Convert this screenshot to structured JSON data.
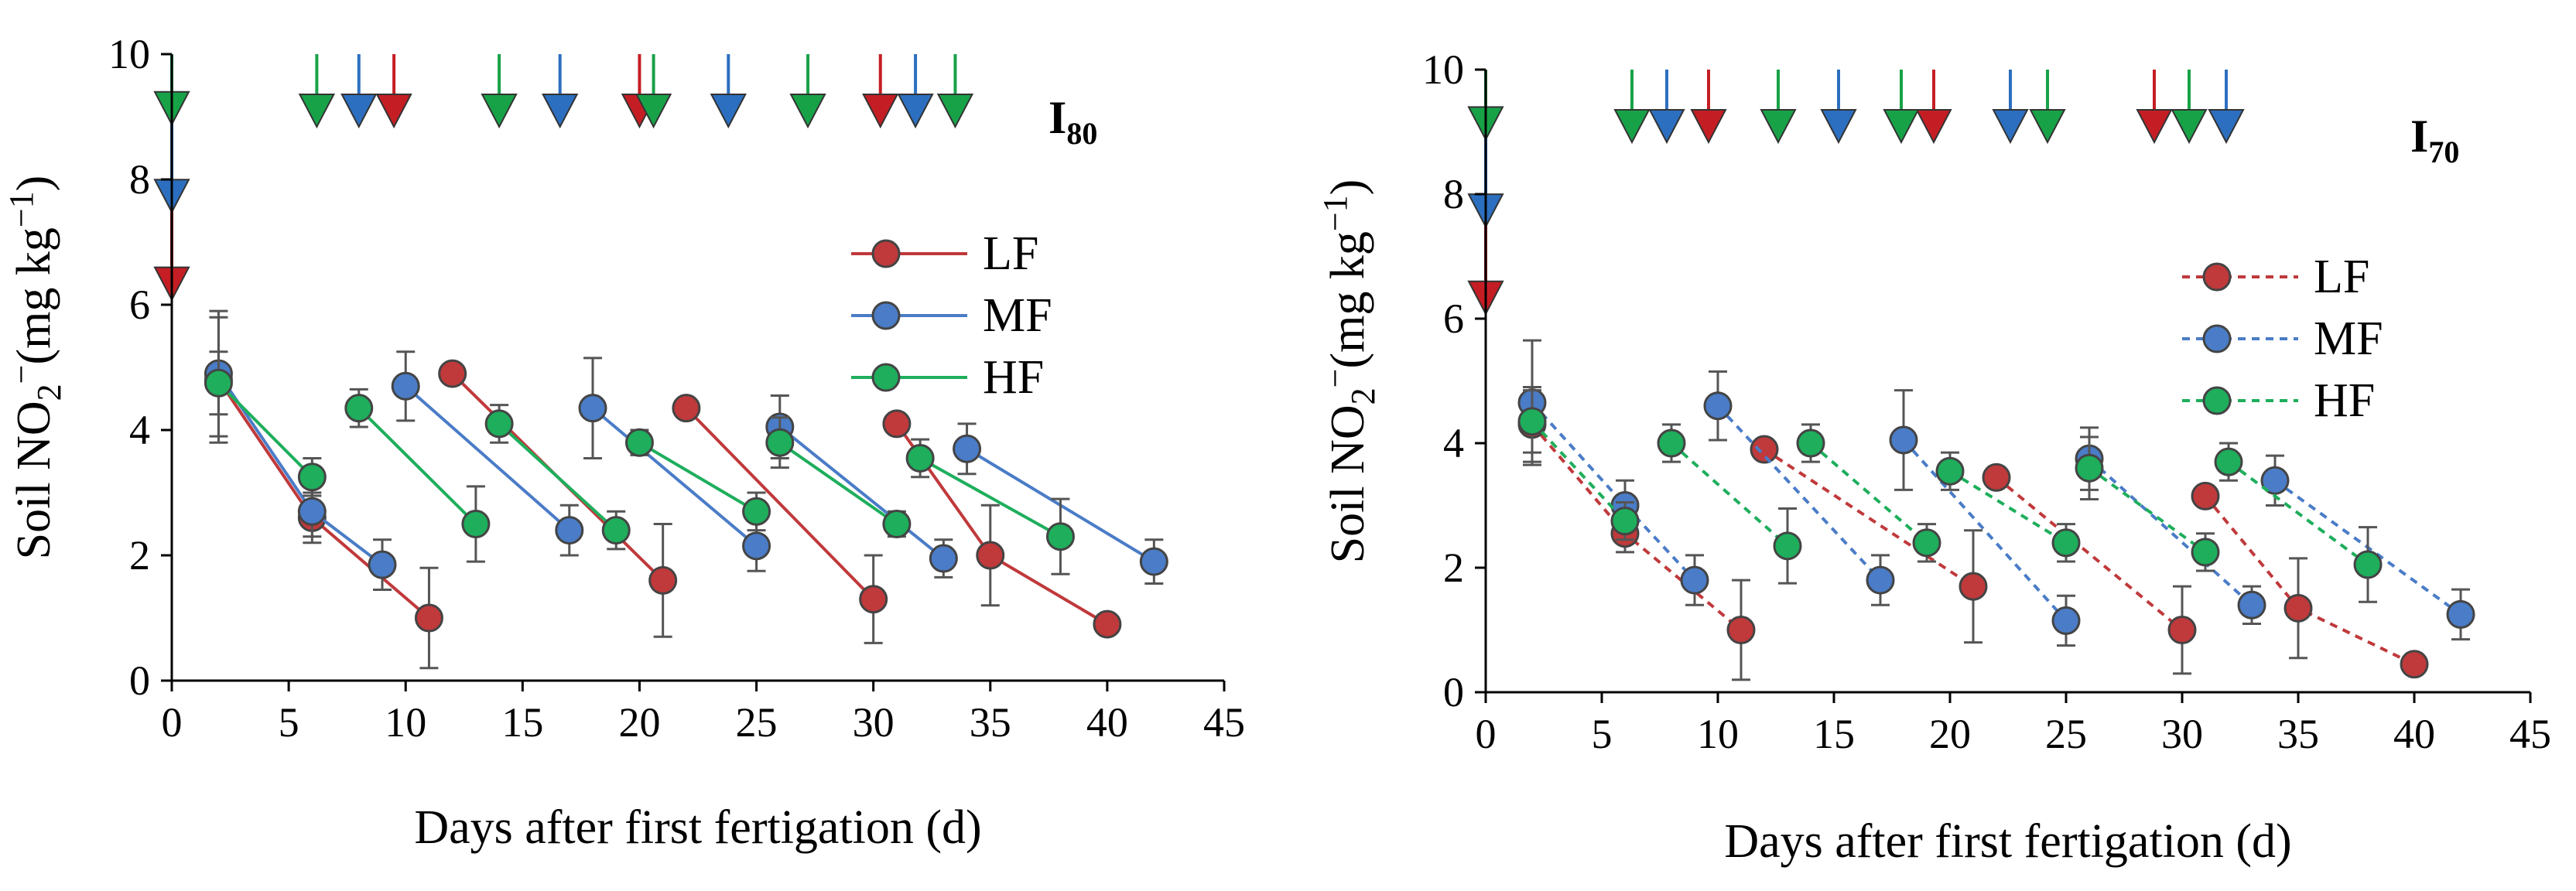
{
  "colors": {
    "LF": "#c0393b",
    "MF": "#4a7cc7",
    "HF": "#1eae5c",
    "LF_arrow": "#c41e24",
    "MF_arrow": "#2c6fc0",
    "HF_arrow": "#18a248"
  },
  "chart_data": [
    {
      "type": "line",
      "panel_label": "I",
      "panel_sub": "80",
      "line_style": "solid",
      "xlabel": "Days after first fertigation (d)",
      "ylabel_main": "Soil NO",
      "ylabel_sub": "2",
      "ylabel_sup1": "−",
      "ylabel_unit": "(mg kg",
      "ylabel_sup2": "−1",
      "ylabel_close": ")",
      "xlim": [
        0,
        45
      ],
      "ylim": [
        0,
        10
      ],
      "xticks": [
        "0",
        "5",
        "10",
        "15",
        "20",
        "25",
        "30",
        "35",
        "40",
        "45"
      ],
      "yticks": [
        "0",
        "2",
        "4",
        "6",
        "8",
        "10"
      ],
      "legend": [
        "LF",
        "MF",
        "HF"
      ],
      "series": [
        {
          "name": "LF",
          "segments": [
            [
              [
                2,
                4.8,
                1.0
              ],
              [
                6,
                2.6,
                0.4
              ],
              [
                11,
                1.0,
                0.8
              ]
            ],
            [
              [
                12,
                4.9,
                0
              ],
              [
                21,
                1.6,
                0.9
              ]
            ],
            [
              [
                22,
                4.35,
                0
              ],
              [
                30,
                1.3,
                0.7
              ]
            ],
            [
              [
                31,
                4.1,
                0
              ],
              [
                35,
                2.0,
                0.8
              ],
              [
                40,
                0.9,
                0
              ]
            ]
          ]
        },
        {
          "name": "MF",
          "segments": [
            [
              [
                2,
                4.9,
                1.0
              ],
              [
                6,
                2.7,
                0.4
              ],
              [
                9,
                1.85,
                0.4
              ]
            ],
            [
              [
                10,
                4.7,
                0.55
              ],
              [
                17,
                2.4,
                0.4
              ]
            ],
            [
              [
                18,
                4.35,
                0.8
              ],
              [
                25,
                2.15,
                0.4
              ]
            ],
            [
              [
                26,
                4.05,
                0.5
              ],
              [
                33,
                1.95,
                0.3
              ]
            ],
            [
              [
                34,
                3.7,
                0.4
              ],
              [
                42,
                1.9,
                0.35
              ]
            ]
          ]
        },
        {
          "name": "HF",
          "segments": [
            [
              [
                2,
                4.75,
                0.5
              ],
              [
                6,
                3.25,
                0.3
              ]
            ],
            [
              [
                8,
                4.35,
                0.3
              ],
              [
                13,
                2.5,
                0.6
              ]
            ],
            [
              [
                14,
                4.1,
                0.3
              ],
              [
                19,
                2.4,
                0.3
              ]
            ],
            [
              [
                20,
                3.8,
                0.2
              ],
              [
                25,
                2.7,
                0.3
              ]
            ],
            [
              [
                26,
                3.8,
                0.4
              ],
              [
                31,
                2.5,
                0.2
              ]
            ],
            [
              [
                32,
                3.55,
                0.3
              ],
              [
                38,
                2.3,
                0.6
              ]
            ]
          ]
        }
      ],
      "arrows": {
        "LF": [
          {
            "x": 0,
            "y": 6.4
          },
          9.5,
          20,
          30.3
        ],
        "MF": [
          {
            "x": 0,
            "y": 7.8
          },
          8,
          16.6,
          23.8,
          31.8
        ],
        "HF": [
          {
            "x": 0,
            "y": 9.2
          },
          6.2,
          14,
          20.6,
          27.2,
          33.5
        ]
      }
    },
    {
      "type": "line",
      "panel_label": "I",
      "panel_sub": "70",
      "line_style": "dashed",
      "xlabel": "Days after first fertigation (d)",
      "ylabel_main": "Soil NO",
      "ylabel_sub": "2",
      "ylabel_sup1": "−",
      "ylabel_unit": "(mg kg",
      "ylabel_sup2": "−1",
      "ylabel_close": ")",
      "xlim": [
        0,
        45
      ],
      "ylim": [
        0,
        10
      ],
      "xticks": [
        "0",
        "5",
        "10",
        "15",
        "20",
        "25",
        "30",
        "35",
        "40",
        "45"
      ],
      "yticks": [
        "0",
        "2",
        "4",
        "6",
        "8",
        "10"
      ],
      "legend": [
        "LF",
        "MF",
        "HF"
      ],
      "series": [
        {
          "name": "LF",
          "segments": [
            [
              [
                2,
                4.3,
                0.6
              ],
              [
                6,
                2.55,
                0.3
              ],
              [
                11,
                1.0,
                0.8
              ]
            ],
            [
              [
                12,
                3.9,
                0
              ],
              [
                21,
                1.7,
                0.9
              ]
            ],
            [
              [
                22,
                3.45,
                0
              ],
              [
                30,
                1.0,
                0.7
              ]
            ],
            [
              [
                31,
                3.15,
                0
              ],
              [
                35,
                1.35,
                0.8
              ],
              [
                40,
                0.45,
                0
              ]
            ]
          ]
        },
        {
          "name": "MF",
          "segments": [
            [
              [
                2,
                4.65,
                1.0
              ],
              [
                6,
                3.0,
                0.4
              ],
              [
                9,
                1.8,
                0.4
              ]
            ],
            [
              [
                10,
                4.6,
                0.55
              ],
              [
                17,
                1.8,
                0.4
              ]
            ],
            [
              [
                18,
                4.05,
                0.8
              ],
              [
                25,
                1.15,
                0.4
              ]
            ],
            [
              [
                26,
                3.75,
                0.5
              ],
              [
                33,
                1.4,
                0.3
              ]
            ],
            [
              [
                34,
                3.4,
                0.4
              ],
              [
                42,
                1.25,
                0.4
              ]
            ]
          ]
        },
        {
          "name": "HF",
          "segments": [
            [
              [
                2,
                4.35,
                0.5
              ],
              [
                6,
                2.75,
                0.3
              ]
            ],
            [
              [
                8,
                4.0,
                0.3
              ],
              [
                13,
                2.35,
                0.6
              ]
            ],
            [
              [
                14,
                4.0,
                0.3
              ],
              [
                19,
                2.4,
                0.3
              ]
            ],
            [
              [
                20,
                3.55,
                0.3
              ],
              [
                25,
                2.4,
                0.3
              ]
            ],
            [
              [
                26,
                3.6,
                0.5
              ],
              [
                31,
                2.25,
                0.3
              ]
            ],
            [
              [
                32,
                3.7,
                0.3
              ],
              [
                38,
                2.05,
                0.6
              ]
            ]
          ]
        }
      ],
      "arrows": {
        "LF": [
          {
            "x": 0,
            "y": 6.4
          },
          9.6,
          19.3,
          28.8
        ],
        "MF": [
          {
            "x": 0,
            "y": 7.8
          },
          7.8,
          15.2,
          22.6,
          31.9
        ],
        "HF": [
          {
            "x": 0,
            "y": 9.2
          },
          6.3,
          12.6,
          17.9,
          24.2,
          30.3
        ]
      }
    }
  ]
}
